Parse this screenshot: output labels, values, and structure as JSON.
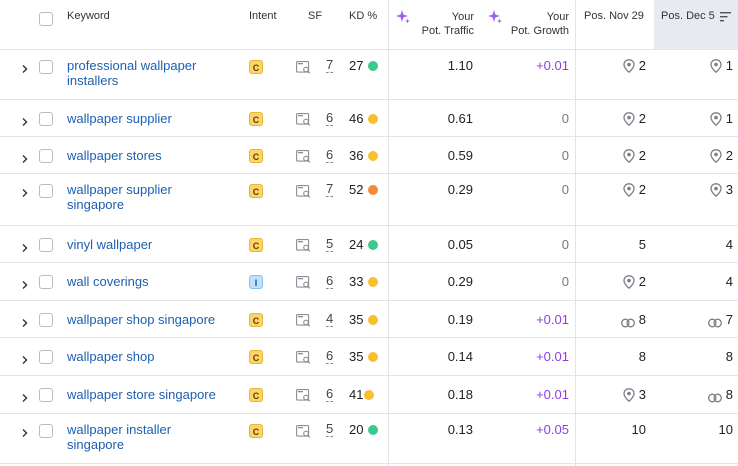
{
  "columns": {
    "keyword": "Keyword",
    "intent": "Intent",
    "sf": "SF",
    "kd": "KD %",
    "traffic_line1": "Your",
    "traffic_line2": "Pot. Traffic",
    "growth_line1": "Your",
    "growth_line2": "Pot. Growth",
    "pos_nov": "Pos. Nov 29",
    "pos_dec": "Pos. Dec 5"
  },
  "colors": {
    "kd_green": "#3cc98c",
    "kd_yellow": "#f8c030",
    "kd_orange": "#f38a3c",
    "link": "#1d5fb2",
    "purple": "#8d3ee6"
  },
  "rows": [
    {
      "keyword_line1": "professional wallpaper",
      "keyword_line2": "installers",
      "intent": "C",
      "sf": "7",
      "kd": "27",
      "kd_color": "green",
      "traffic": "1.10",
      "growth": "+0.01",
      "pos_nov": "2",
      "pos_nov_icon": "pin",
      "pos_dec": "1",
      "pos_dec_icon": "pin"
    },
    {
      "keyword_line1": "wallpaper supplier",
      "keyword_line2": "",
      "intent": "C",
      "sf": "6",
      "kd": "46",
      "kd_color": "yellow",
      "traffic": "0.61",
      "growth": "0",
      "pos_nov": "2",
      "pos_nov_icon": "pin",
      "pos_dec": "1",
      "pos_dec_icon": "pin"
    },
    {
      "keyword_line1": "wallpaper stores",
      "keyword_line2": "",
      "intent": "C",
      "sf": "6",
      "kd": "36",
      "kd_color": "yellow",
      "traffic": "0.59",
      "growth": "0",
      "pos_nov": "2",
      "pos_nov_icon": "pin",
      "pos_dec": "2",
      "pos_dec_icon": "pin"
    },
    {
      "keyword_line1": "wallpaper supplier",
      "keyword_line2": "singapore",
      "intent": "C",
      "sf": "7",
      "kd": "52",
      "kd_color": "orange",
      "traffic": "0.29",
      "growth": "0",
      "pos_nov": "2",
      "pos_nov_icon": "pin",
      "pos_dec": "3",
      "pos_dec_icon": "pin"
    },
    {
      "keyword_line1": "vinyl wallpaper",
      "keyword_line2": "",
      "intent": "C",
      "sf": "5",
      "kd": "24",
      "kd_color": "green",
      "traffic": "0.05",
      "growth": "0",
      "pos_nov": "5",
      "pos_nov_icon": "",
      "pos_dec": "4",
      "pos_dec_icon": ""
    },
    {
      "keyword_line1": "wall coverings",
      "keyword_line2": "",
      "intent": "I",
      "sf": "6",
      "kd": "33",
      "kd_color": "yellow",
      "traffic": "0.29",
      "growth": "0",
      "pos_nov": "2",
      "pos_nov_icon": "pin",
      "pos_dec": "4",
      "pos_dec_icon": ""
    },
    {
      "keyword_line1": "wallpaper shop singapore",
      "keyword_line2": "",
      "intent": "C",
      "sf": "4",
      "kd": "35",
      "kd_color": "yellow",
      "traffic": "0.19",
      "growth": "+0.01",
      "pos_nov": "8",
      "pos_nov_icon": "link",
      "pos_dec": "7",
      "pos_dec_icon": "link"
    },
    {
      "keyword_line1": "wallpaper shop",
      "keyword_line2": "",
      "intent": "C",
      "sf": "6",
      "kd": "35",
      "kd_color": "yellow",
      "traffic": "0.14",
      "growth": "+0.01",
      "pos_nov": "8",
      "pos_nov_icon": "",
      "pos_dec": "8",
      "pos_dec_icon": ""
    },
    {
      "keyword_line1": "wallpaper store singapore",
      "keyword_line2": "",
      "intent": "C",
      "sf": "6",
      "kd": "41",
      "kd_color": "yellow",
      "traffic": "0.18",
      "growth": "+0.01",
      "pos_nov": "3",
      "pos_nov_icon": "pin",
      "pos_dec": "8",
      "pos_dec_icon": "link"
    },
    {
      "keyword_line1": "wallpaper installer",
      "keyword_line2": "singapore",
      "intent": "C",
      "sf": "5",
      "kd": "20",
      "kd_color": "green",
      "traffic": "0.13",
      "growth": "+0.05",
      "pos_nov": "10",
      "pos_nov_icon": "",
      "pos_dec": "10",
      "pos_dec_icon": ""
    }
  ]
}
